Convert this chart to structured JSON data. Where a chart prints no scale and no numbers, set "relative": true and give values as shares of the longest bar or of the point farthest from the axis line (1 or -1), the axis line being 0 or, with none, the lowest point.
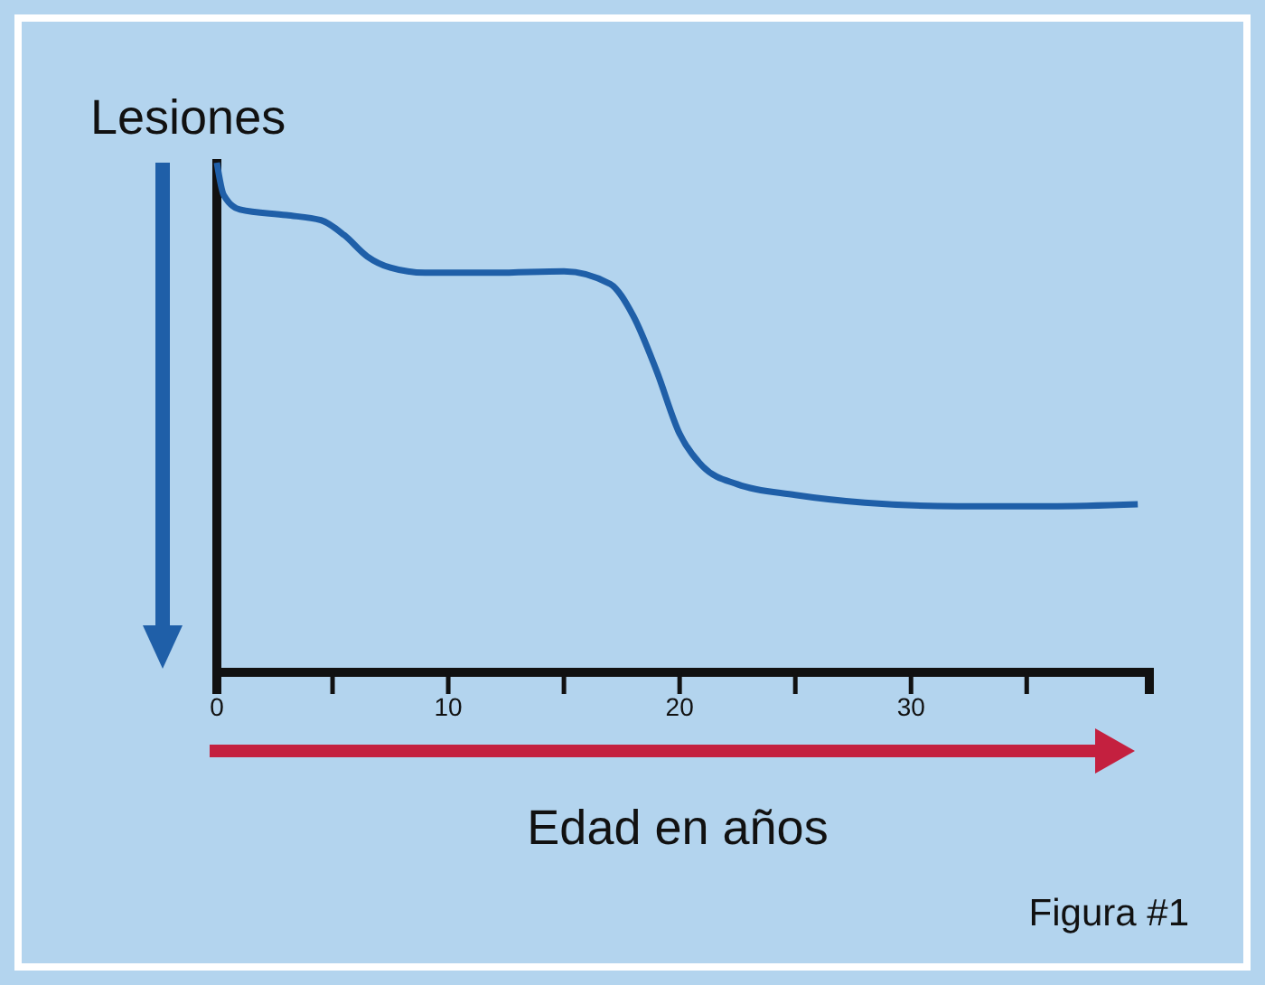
{
  "chart_data": {
    "type": "line",
    "relative": true,
    "xlabel": "Edad en años",
    "ylabel": "Lesiones",
    "annotations": [
      "Figura #1"
    ],
    "xlim": [
      0,
      40.3
    ],
    "xticks": [
      0,
      {
        "value": 5,
        "label": null
      },
      10,
      {
        "value": 15,
        "label": null
      },
      20,
      {
        "value": 25,
        "label": null
      },
      30,
      {
        "value": 35,
        "label": null
      }
    ],
    "x": [
      0,
      0.3,
      1,
      3,
      4.5,
      5.5,
      6.5,
      7.5,
      9,
      12,
      15,
      17,
      18,
      19,
      20,
      21,
      22.5,
      25,
      28,
      32,
      36,
      39.8
    ],
    "series": [
      {
        "color": "#1f5fa8",
        "values": [
          1.0,
          0.936,
          0.908,
          0.897,
          0.887,
          0.858,
          0.816,
          0.794,
          0.784,
          0.784,
          0.787,
          0.762,
          0.699,
          0.592,
          0.468,
          0.404,
          0.369,
          0.348,
          0.333,
          0.326,
          0.326,
          0.33
        ]
      }
    ],
    "grid": false,
    "marker": "none",
    "line_style": "solid"
  }
}
